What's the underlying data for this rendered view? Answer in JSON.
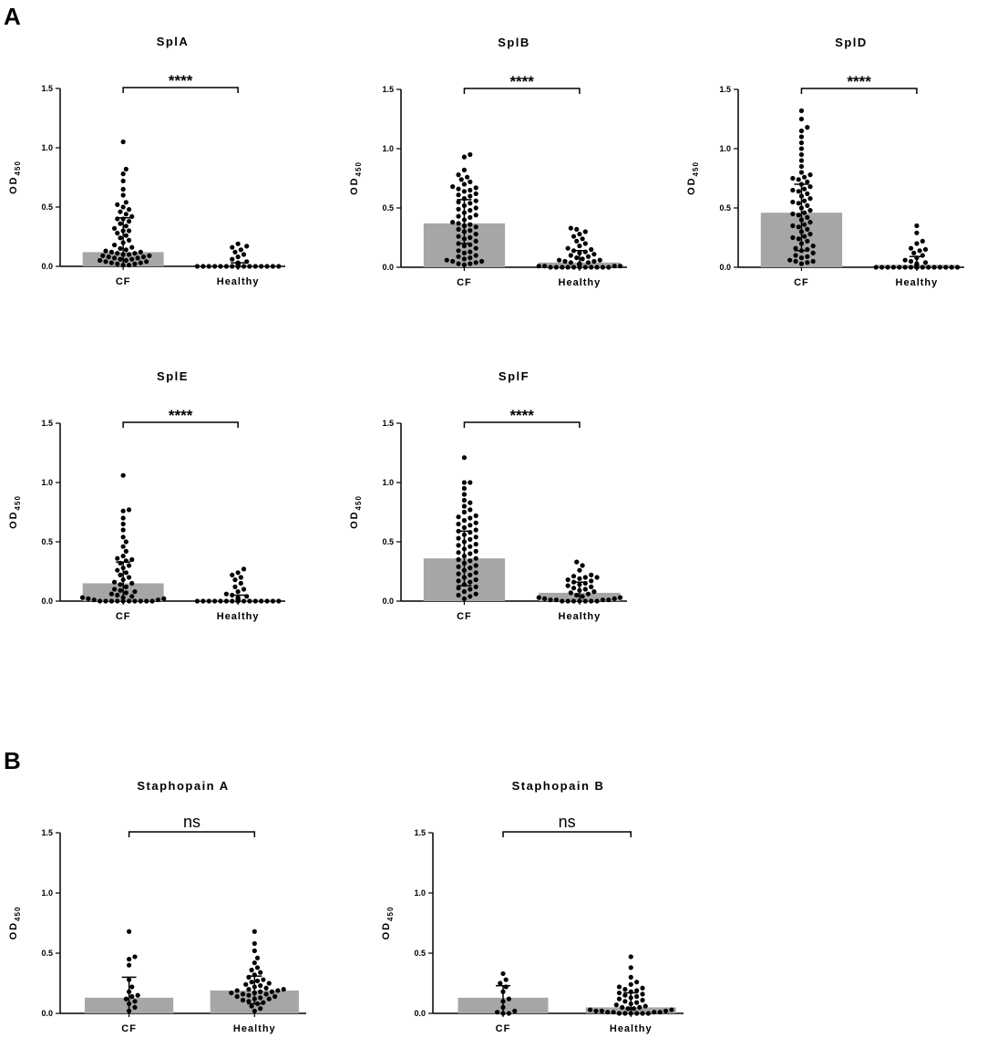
{
  "figure": {
    "panel_labels": [
      "A",
      "B"
    ],
    "bar_color": "#a6a6a6",
    "dot_color": "#000000"
  },
  "chart_data": [
    {
      "type": "bar",
      "panel": "A",
      "title": "SplA",
      "ylabel": "OD",
      "ylabel_sub": "450",
      "ylim": [
        0,
        1.5
      ],
      "yticks": [
        "0.0",
        "0.5",
        "1.0",
        "1.5"
      ],
      "categories": [
        "CF",
        "Healthy"
      ],
      "bar_values": [
        0.12,
        0.01
      ],
      "error_bars": [
        [
          0.0,
          0.41
        ],
        [
          0.0,
          0.03
        ]
      ],
      "significance": "****",
      "points": [
        [
          0.01,
          0.01,
          0.02,
          0.02,
          0.03,
          0.03,
          0.04,
          0.04,
          0.05,
          0.05,
          0.06,
          0.06,
          0.07,
          0.07,
          0.08,
          0.08,
          0.09,
          0.09,
          0.1,
          0.1,
          0.11,
          0.11,
          0.12,
          0.12,
          0.13,
          0.14,
          0.15,
          0.16,
          0.18,
          0.2,
          0.22,
          0.24,
          0.26,
          0.28,
          0.3,
          0.3,
          0.32,
          0.34,
          0.36,
          0.38,
          0.4,
          0.4,
          0.42,
          0.44,
          0.46,
          0.48,
          0.5,
          0.52,
          0.54,
          0.6,
          0.65,
          0.72,
          0.78,
          0.82,
          1.05
        ],
        [
          0.0,
          0.0,
          0.0,
          0.0,
          0.0,
          0.0,
          0.0,
          0.0,
          0.0,
          0.0,
          0.0,
          0.0,
          0.0,
          0.0,
          0.0,
          0.0,
          0.0,
          0.0,
          0.0,
          0.0,
          0.01,
          0.01,
          0.01,
          0.01,
          0.01,
          0.01,
          0.01,
          0.01,
          0.02,
          0.02,
          0.02,
          0.03,
          0.04,
          0.06,
          0.08,
          0.1,
          0.12,
          0.14,
          0.16,
          0.17,
          0.19
        ]
      ]
    },
    {
      "type": "bar",
      "panel": "A",
      "title": "SplB",
      "ylabel": "OD",
      "ylabel_sub": "450",
      "ylim": [
        0,
        1.5
      ],
      "yticks": [
        "0.0",
        "0.5",
        "1.0",
        "1.5"
      ],
      "categories": [
        "CF",
        "Healthy"
      ],
      "bar_values": [
        0.37,
        0.04
      ],
      "error_bars": [
        [
          0.2,
          0.57
        ],
        [
          0.0,
          0.14
        ]
      ],
      "significance": "****",
      "points": [
        [
          0.02,
          0.03,
          0.04,
          0.05,
          0.06,
          0.07,
          0.08,
          0.1,
          0.12,
          0.14,
          0.16,
          0.18,
          0.2,
          0.22,
          0.24,
          0.26,
          0.28,
          0.3,
          0.32,
          0.34,
          0.35,
          0.36,
          0.38,
          0.4,
          0.42,
          0.44,
          0.46,
          0.48,
          0.5,
          0.52,
          0.54,
          0.56,
          0.58,
          0.6,
          0.62,
          0.64,
          0.65,
          0.66,
          0.68,
          0.7,
          0.72,
          0.74,
          0.76,
          0.78,
          0.82,
          0.93,
          0.95,
          0.03,
          0.05,
          0.09,
          0.13,
          0.19,
          0.25,
          0.31,
          0.37,
          0.43,
          0.49,
          0.55,
          0.61,
          0.67
        ],
        [
          0.0,
          0.0,
          0.0,
          0.0,
          0.0,
          0.0,
          0.0,
          0.0,
          0.0,
          0.0,
          0.0,
          0.01,
          0.01,
          0.01,
          0.01,
          0.02,
          0.02,
          0.02,
          0.03,
          0.03,
          0.04,
          0.04,
          0.05,
          0.05,
          0.06,
          0.06,
          0.07,
          0.08,
          0.09,
          0.1,
          0.11,
          0.12,
          0.13,
          0.14,
          0.15,
          0.16,
          0.18,
          0.2,
          0.22,
          0.24,
          0.26,
          0.28,
          0.3,
          0.32,
          0.33
        ]
      ]
    },
    {
      "type": "bar",
      "panel": "A",
      "title": "SplD",
      "ylabel": "OD",
      "ylabel_sub": "450",
      "ylim": [
        0,
        1.5
      ],
      "yticks": [
        "0.0",
        "0.5",
        "1.0",
        "1.5"
      ],
      "categories": [
        "CF",
        "Healthy"
      ],
      "bar_values": [
        0.46,
        0.02
      ],
      "error_bars": [
        [
          0.14,
          0.7
        ],
        [
          0.0,
          0.09
        ]
      ],
      "significance": "****",
      "points": [
        [
          0.03,
          0.04,
          0.05,
          0.06,
          0.08,
          0.1,
          0.12,
          0.14,
          0.16,
          0.18,
          0.2,
          0.22,
          0.24,
          0.26,
          0.28,
          0.3,
          0.32,
          0.34,
          0.36,
          0.38,
          0.4,
          0.42,
          0.44,
          0.46,
          0.48,
          0.5,
          0.52,
          0.54,
          0.56,
          0.58,
          0.6,
          0.62,
          0.64,
          0.66,
          0.68,
          0.7,
          0.72,
          0.74,
          0.76,
          0.78,
          0.8,
          0.85,
          0.9,
          0.95,
          1.0,
          1.05,
          1.1,
          1.15,
          1.18,
          1.25,
          1.32,
          0.05,
          0.09,
          0.15,
          0.25,
          0.35,
          0.45,
          0.55,
          0.65,
          0.75
        ],
        [
          0.0,
          0.0,
          0.0,
          0.0,
          0.0,
          0.0,
          0.0,
          0.0,
          0.0,
          0.0,
          0.0,
          0.0,
          0.0,
          0.0,
          0.0,
          0.0,
          0.0,
          0.0,
          0.0,
          0.0,
          0.01,
          0.01,
          0.01,
          0.01,
          0.01,
          0.02,
          0.02,
          0.02,
          0.03,
          0.04,
          0.05,
          0.06,
          0.08,
          0.1,
          0.12,
          0.14,
          0.15,
          0.16,
          0.2,
          0.22,
          0.29,
          0.35
        ]
      ]
    },
    {
      "type": "bar",
      "panel": "A",
      "title": "SplE",
      "ylabel": "OD",
      "ylabel_sub": "450",
      "ylim": [
        0,
        1.5
      ],
      "yticks": [
        "0.0",
        "0.5",
        "1.0",
        "1.5"
      ],
      "categories": [
        "CF",
        "Healthy"
      ],
      "bar_values": [
        0.15,
        0.01
      ],
      "error_bars": [
        [
          0.0,
          0.33
        ],
        [
          0.0,
          0.05
        ]
      ],
      "significance": "****",
      "points": [
        [
          0.0,
          0.0,
          0.0,
          0.0,
          0.0,
          0.0,
          0.0,
          0.0,
          0.0,
          0.0,
          0.01,
          0.01,
          0.02,
          0.02,
          0.03,
          0.03,
          0.04,
          0.05,
          0.06,
          0.07,
          0.08,
          0.09,
          0.1,
          0.12,
          0.14,
          0.15,
          0.16,
          0.18,
          0.2,
          0.22,
          0.24,
          0.26,
          0.28,
          0.3,
          0.32,
          0.34,
          0.35,
          0.36,
          0.38,
          0.42,
          0.46,
          0.5,
          0.54,
          0.6,
          0.65,
          0.7,
          0.76,
          0.77,
          1.06
        ],
        [
          0.0,
          0.0,
          0.0,
          0.0,
          0.0,
          0.0,
          0.0,
          0.0,
          0.0,
          0.0,
          0.0,
          0.0,
          0.0,
          0.0,
          0.0,
          0.0,
          0.0,
          0.0,
          0.01,
          0.01,
          0.01,
          0.02,
          0.02,
          0.03,
          0.04,
          0.05,
          0.06,
          0.08,
          0.1,
          0.12,
          0.15,
          0.18,
          0.2,
          0.22,
          0.24,
          0.27
        ]
      ]
    },
    {
      "type": "bar",
      "panel": "A",
      "title": "SplF",
      "ylabel": "OD",
      "ylabel_sub": "450",
      "ylim": [
        0,
        1.5
      ],
      "yticks": [
        "0.0",
        "0.5",
        "1.0",
        "1.5"
      ],
      "categories": [
        "CF",
        "Healthy"
      ],
      "bar_values": [
        0.36,
        0.07
      ],
      "error_bars": [
        [
          0.13,
          0.59
        ],
        [
          0.0,
          0.16
        ]
      ],
      "significance": "****",
      "points": [
        [
          0.02,
          0.04,
          0.06,
          0.08,
          0.1,
          0.12,
          0.14,
          0.16,
          0.18,
          0.2,
          0.22,
          0.24,
          0.26,
          0.28,
          0.3,
          0.32,
          0.34,
          0.36,
          0.38,
          0.4,
          0.42,
          0.44,
          0.46,
          0.48,
          0.5,
          0.52,
          0.54,
          0.56,
          0.58,
          0.6,
          0.62,
          0.64,
          0.66,
          0.68,
          0.7,
          0.72,
          0.75,
          0.8,
          0.85,
          0.9,
          0.95,
          1.0,
          1.0,
          1.21,
          0.05,
          0.11,
          0.17,
          0.23,
          0.29,
          0.35,
          0.41,
          0.47,
          0.53,
          0.59,
          0.65,
          0.71,
          0.77,
          0.83
        ],
        [
          0.0,
          0.0,
          0.0,
          0.0,
          0.0,
          0.0,
          0.0,
          0.01,
          0.01,
          0.01,
          0.01,
          0.02,
          0.02,
          0.03,
          0.03,
          0.04,
          0.05,
          0.06,
          0.07,
          0.08,
          0.09,
          0.1,
          0.11,
          0.12,
          0.13,
          0.14,
          0.15,
          0.16,
          0.17,
          0.18,
          0.19,
          0.2,
          0.2,
          0.21,
          0.22,
          0.26,
          0.3,
          0.33
        ]
      ]
    },
    {
      "type": "bar",
      "panel": "B",
      "title": "Staphopain  A",
      "ylabel": "OD",
      "ylabel_sub": "450",
      "ylim": [
        0,
        1.5
      ],
      "yticks": [
        "0.0",
        "0.5",
        "1.0",
        "1.5"
      ],
      "categories": [
        "CF",
        "Healthy"
      ],
      "bar_values": [
        0.13,
        0.19
      ],
      "error_bars": [
        [
          0.0,
          0.3
        ],
        [
          0.08,
          0.31
        ]
      ],
      "significance": "ns",
      "points": [
        [
          0.02,
          0.05,
          0.08,
          0.1,
          0.12,
          0.14,
          0.15,
          0.18,
          0.22,
          0.28,
          0.4,
          0.45,
          0.47,
          0.68
        ],
        [
          0.02,
          0.04,
          0.06,
          0.08,
          0.09,
          0.1,
          0.11,
          0.12,
          0.12,
          0.13,
          0.14,
          0.14,
          0.15,
          0.16,
          0.16,
          0.17,
          0.17,
          0.18,
          0.18,
          0.19,
          0.19,
          0.2,
          0.2,
          0.21,
          0.22,
          0.23,
          0.24,
          0.25,
          0.26,
          0.27,
          0.28,
          0.3,
          0.32,
          0.34,
          0.36,
          0.38,
          0.42,
          0.46,
          0.52,
          0.58,
          0.68
        ]
      ]
    },
    {
      "type": "bar",
      "panel": "B",
      "title": "Staphopain  B",
      "ylabel": "OD",
      "ylabel_sub": "450",
      "ylim": [
        0,
        1.5
      ],
      "yticks": [
        "0.0",
        "0.5",
        "1.0",
        "1.5"
      ],
      "categories": [
        "CF",
        "Healthy"
      ],
      "bar_values": [
        0.13,
        0.05
      ],
      "error_bars": [
        [
          0.0,
          0.23
        ],
        [
          0.0,
          0.17
        ]
      ],
      "significance": "ns",
      "points": [
        [
          0.0,
          0.0,
          0.01,
          0.02,
          0.05,
          0.1,
          0.12,
          0.18,
          0.22,
          0.25,
          0.28,
          0.33
        ],
        [
          0.0,
          0.0,
          0.0,
          0.0,
          0.0,
          0.0,
          0.01,
          0.01,
          0.01,
          0.01,
          0.02,
          0.02,
          0.02,
          0.03,
          0.03,
          0.04,
          0.04,
          0.05,
          0.05,
          0.06,
          0.07,
          0.08,
          0.09,
          0.1,
          0.11,
          0.12,
          0.13,
          0.14,
          0.15,
          0.16,
          0.17,
          0.18,
          0.19,
          0.2,
          0.21,
          0.22,
          0.24,
          0.26,
          0.3,
          0.38,
          0.47
        ]
      ]
    }
  ]
}
